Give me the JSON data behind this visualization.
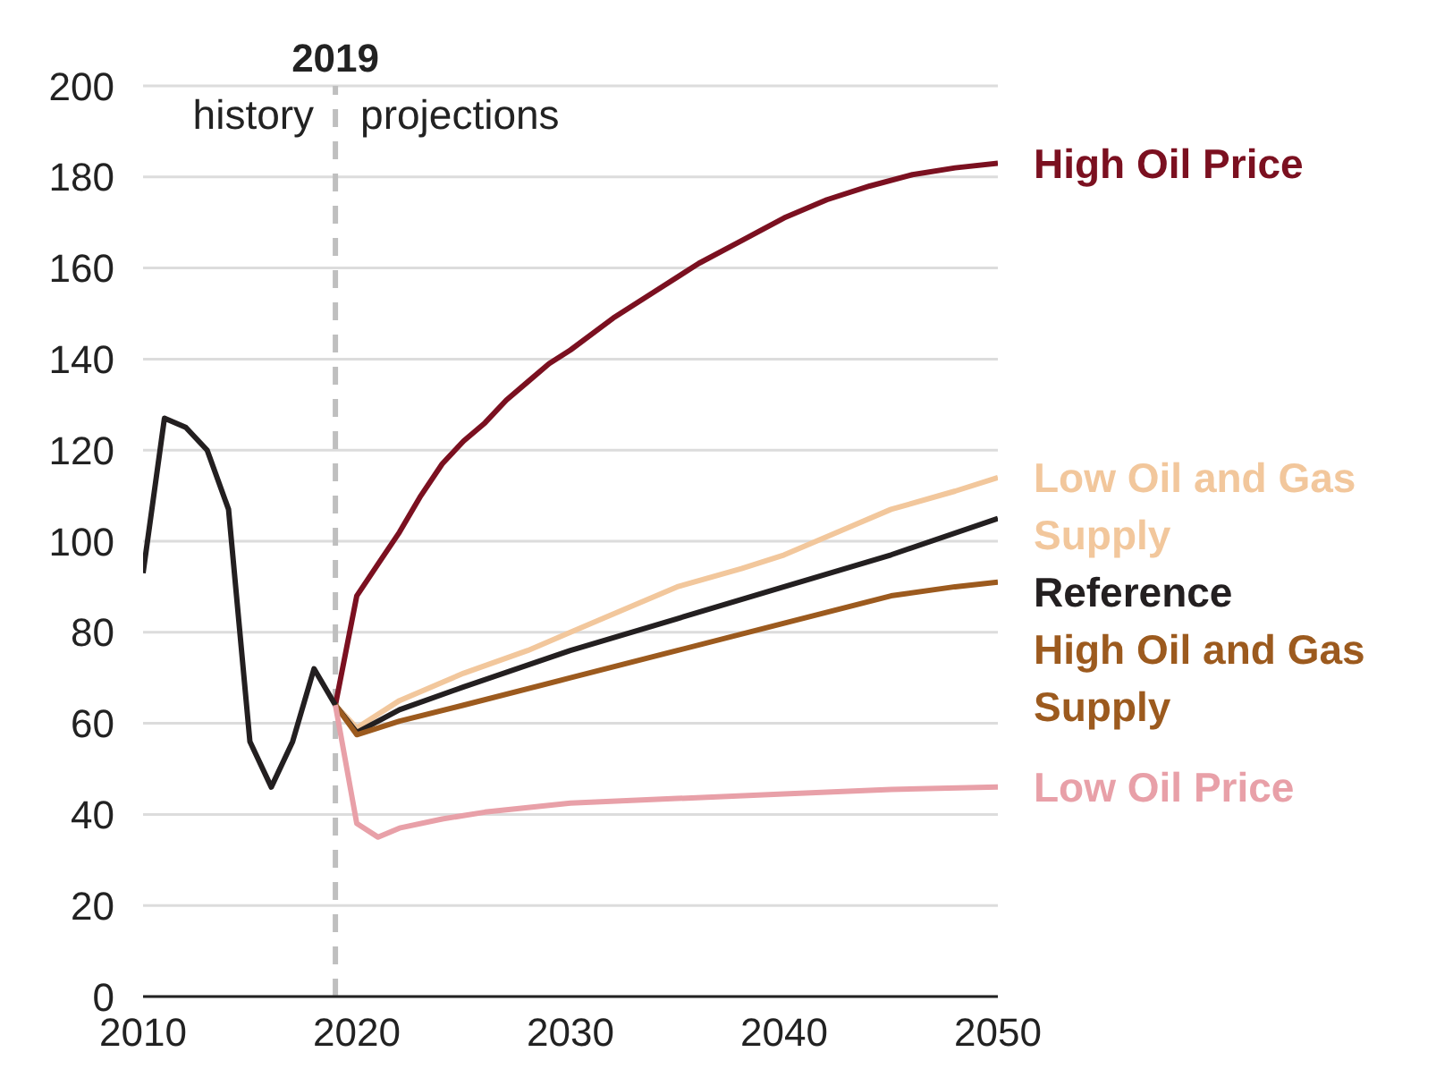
{
  "chart_data": {
    "type": "line",
    "xlim": [
      2010,
      2050
    ],
    "xticks": [
      2010,
      2020,
      2030,
      2040,
      2050
    ],
    "ylim": [
      0,
      200
    ],
    "yticks": [
      0,
      20,
      40,
      60,
      80,
      100,
      120,
      140,
      160,
      180,
      200
    ],
    "grid": "y",
    "legend": "right",
    "marker": "none",
    "line_style": "solid",
    "annotations": [
      "history",
      "projections"
    ],
    "ref_lines": [
      {
        "axis": "x",
        "value": 2019,
        "label": "2019",
        "color": "#bfbfbf",
        "line_style": "dashed"
      }
    ],
    "series": [
      {
        "name": "High Oil Price",
        "color": "#7b1020",
        "x": [
          2019,
          2020,
          2021,
          2022,
          2023,
          2024,
          2025,
          2026,
          2027,
          2028,
          2029,
          2030,
          2032,
          2034,
          2036,
          2038,
          2040,
          2042,
          2044,
          2046,
          2048,
          2050
        ],
        "values": [
          64,
          88,
          95,
          102,
          110,
          117,
          122,
          126,
          131,
          135,
          139,
          142,
          149,
          155,
          161,
          166,
          171,
          175,
          178,
          180.5,
          182,
          183
        ]
      },
      {
        "name": "Low Oil and Gas Supply",
        "color": "#f2c79c",
        "x": [
          2019,
          2020,
          2022,
          2025,
          2028,
          2030,
          2033,
          2035,
          2038,
          2040,
          2043,
          2045,
          2048,
          2050
        ],
        "values": [
          64,
          59,
          65,
          71,
          76,
          80,
          86,
          90,
          94,
          97,
          103,
          107,
          111,
          114
        ]
      },
      {
        "name": "Reference",
        "color": "#231f20",
        "x": [
          2010,
          2011,
          2012,
          2013,
          2014,
          2015,
          2016,
          2017,
          2018,
          2019,
          2020,
          2022,
          2025,
          2030,
          2035,
          2040,
          2045,
          2050
        ],
        "values": [
          93,
          127,
          125,
          120,
          107,
          56,
          46,
          56,
          72,
          64,
          58,
          63,
          68,
          76,
          83,
          90,
          97,
          105
        ]
      },
      {
        "name": "High Oil and Gas Supply",
        "color": "#9c5a1e",
        "x": [
          2019,
          2020,
          2022,
          2025,
          2030,
          2035,
          2040,
          2045,
          2048,
          2050
        ],
        "values": [
          64,
          57.5,
          60.5,
          64,
          70,
          76,
          82,
          88,
          90,
          91
        ]
      },
      {
        "name": "Low Oil Price",
        "color": "#e8a0a8",
        "x": [
          2019,
          2020,
          2021,
          2022,
          2024,
          2026,
          2028,
          2030,
          2035,
          2040,
          2045,
          2050
        ],
        "values": [
          64,
          38,
          35,
          37,
          39,
          40.5,
          41.5,
          42.5,
          43.5,
          44.5,
          45.5,
          46
        ]
      }
    ]
  }
}
